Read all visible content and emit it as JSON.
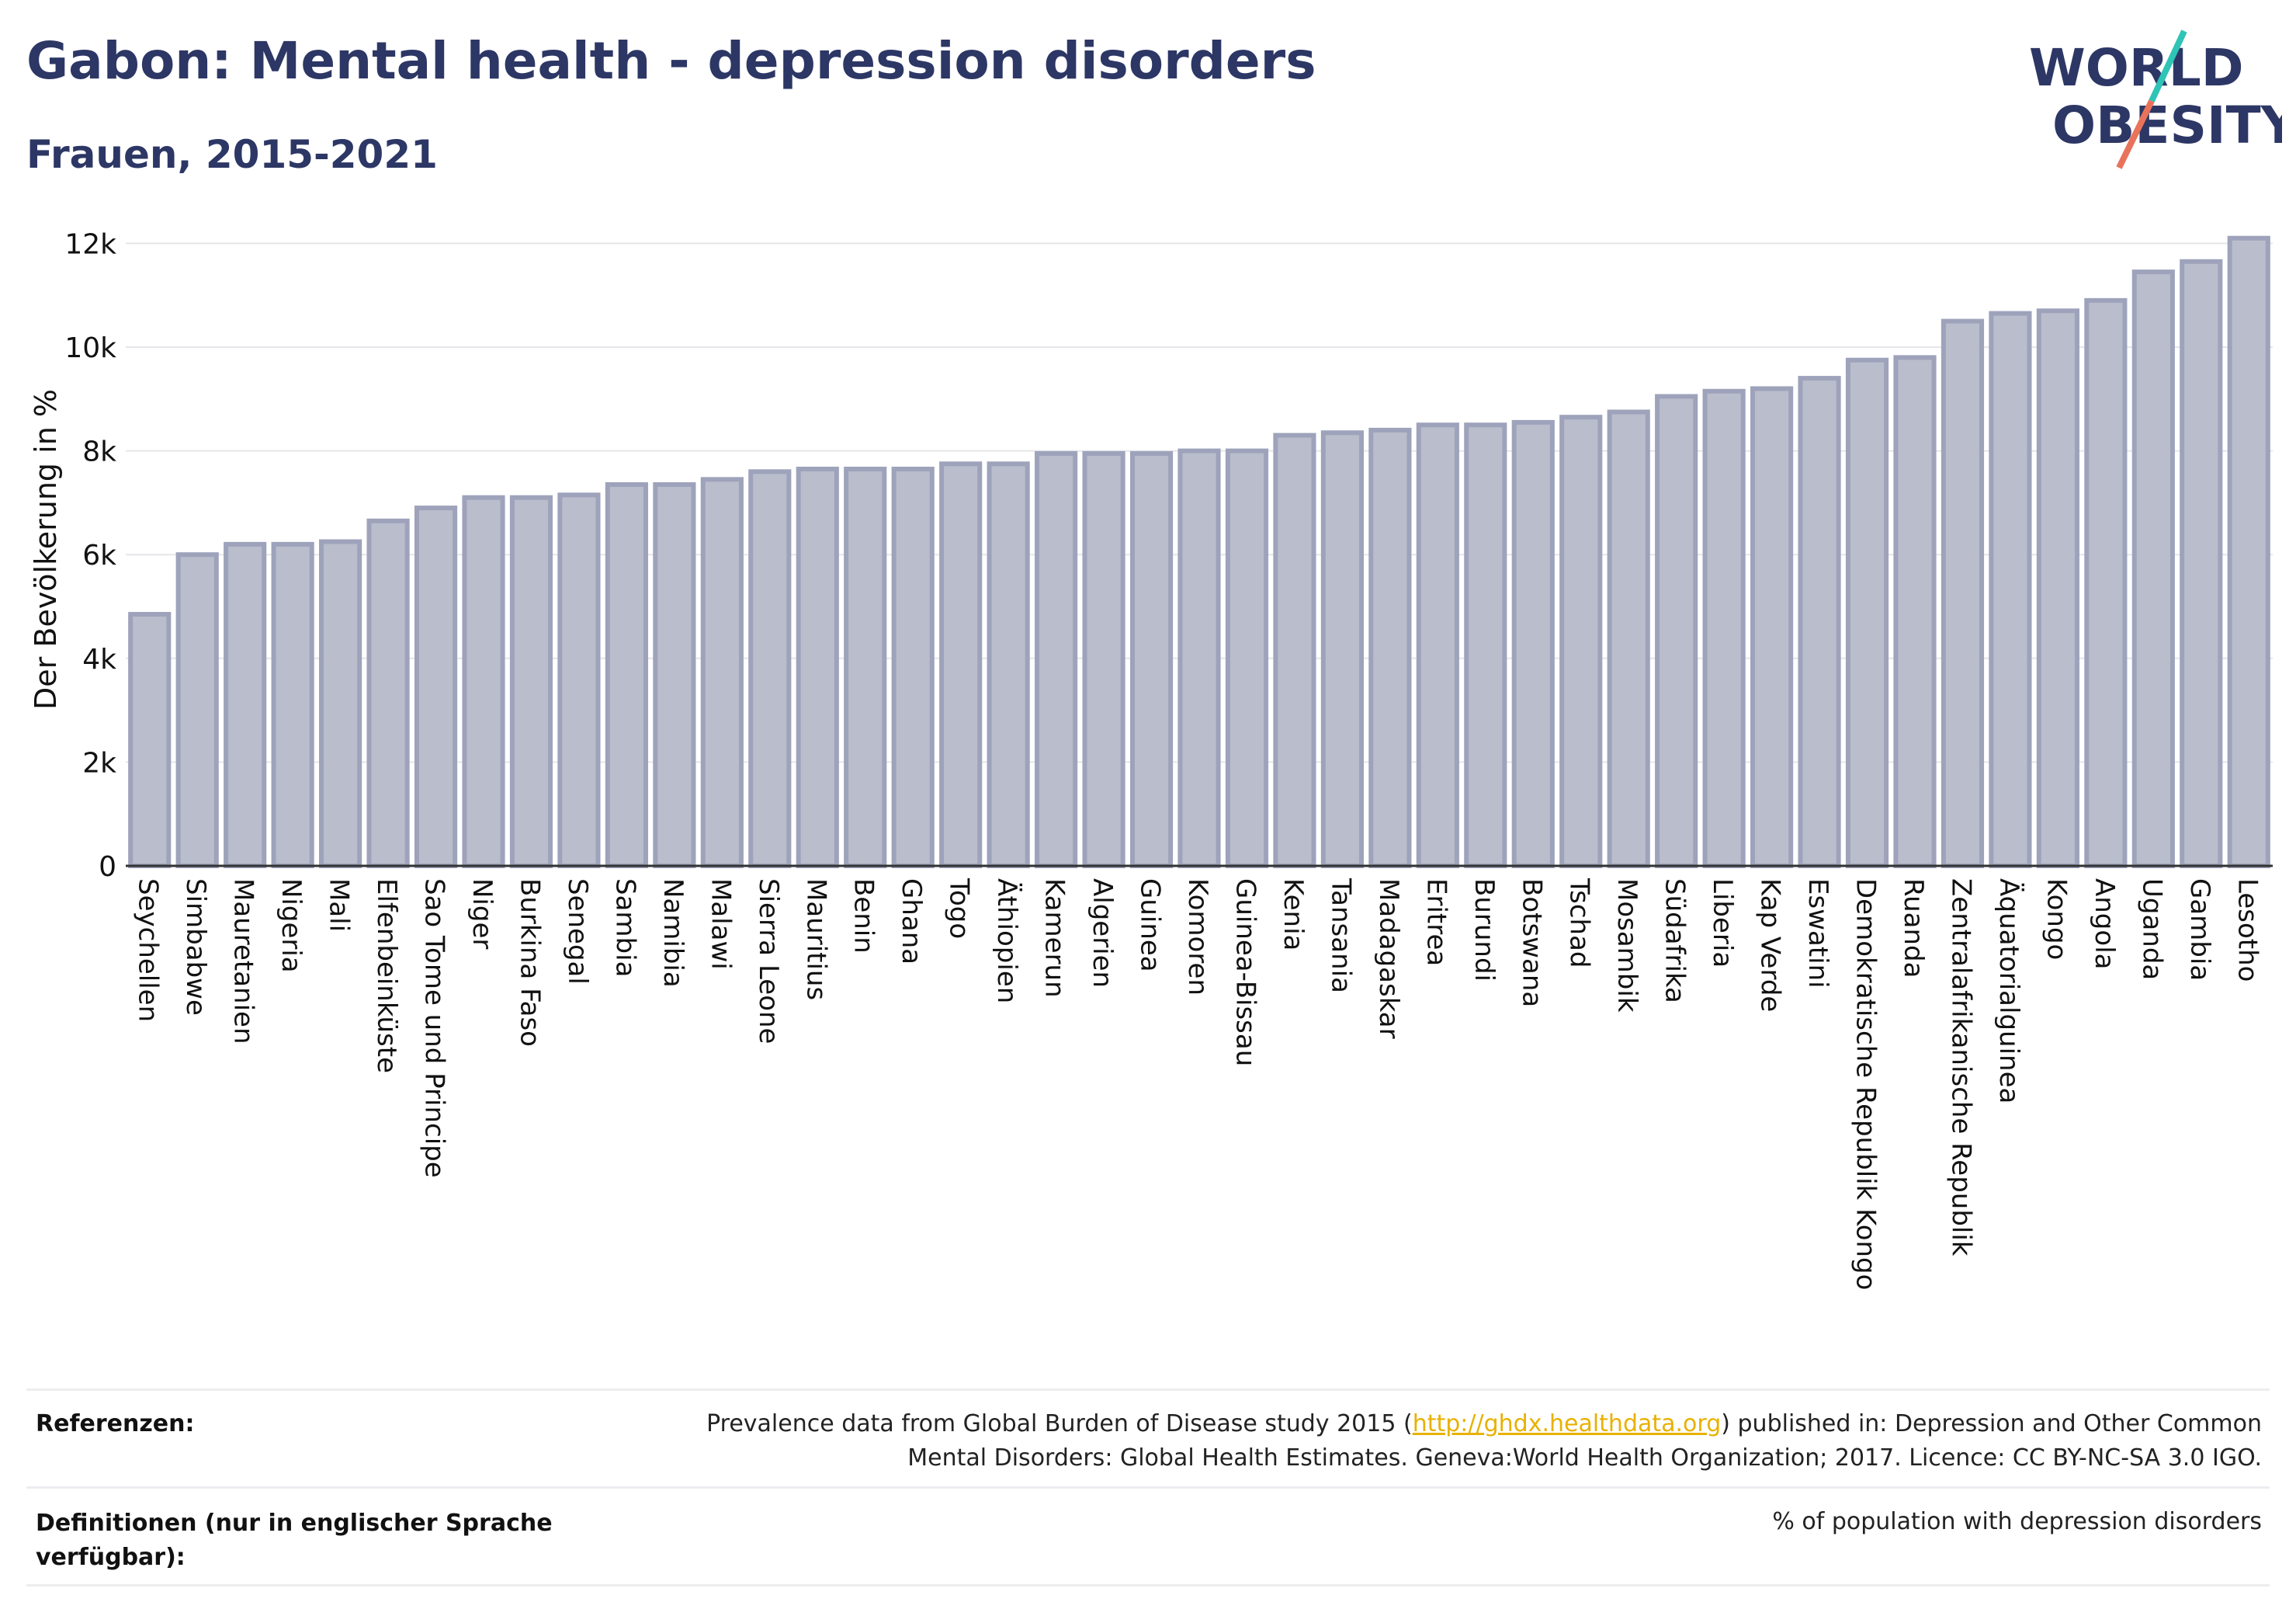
{
  "header": {
    "title": "Gabon: Mental health - depression disorders",
    "subtitle": "Frauen, 2015-2021"
  },
  "logo": {
    "line1": "WORLD",
    "line2": "OBESITY"
  },
  "colors": {
    "title": "#2d3765",
    "bar_fill": "#b9bdcc",
    "bar_stroke": "#9ea3bb",
    "grid": "#e6e6ea",
    "logo_teal": "#2ec4b6",
    "logo_coral": "#e8735a",
    "link": "#e8b100"
  },
  "chart_data": {
    "type": "bar",
    "ylabel": "Der Bevölkerung in %",
    "ylim": [
      0,
      12500
    ],
    "yticks": [
      0,
      2000,
      4000,
      6000,
      8000,
      10000,
      12000
    ],
    "ytick_labels": [
      "0",
      "2k",
      "4k",
      "6k",
      "8k",
      "10k",
      "12k"
    ],
    "grid": true,
    "categories": [
      "Seychellen",
      "Simbabwe",
      "Mauretanien",
      "Nigeria",
      "Mali",
      "Elfenbeinküste",
      "Sao Tome und Principe",
      "Niger",
      "Burkina Faso",
      "Senegal",
      "Sambia",
      "Namibia",
      "Malawi",
      "Sierra Leone",
      "Mauritius",
      "Benin",
      "Ghana",
      "Togo",
      "Äthiopien",
      "Kamerun",
      "Algerien",
      "Guinea",
      "Komoren",
      "Guinea-Bissau",
      "Kenia",
      "Tansania",
      "Madagaskar",
      "Eritrea",
      "Burundi",
      "Botswana",
      "Tschad",
      "Mosambik",
      "Südafrika",
      "Liberia",
      "Kap Verde",
      "Eswatini",
      "Demokratische Republik Kongo",
      "Ruanda",
      "Zentralafrikanische Republik",
      "Äquatorialguinea",
      "Kongo",
      "Angola",
      "Uganda",
      "Gambia",
      "Lesotho"
    ],
    "values": [
      4850,
      6000,
      6200,
      6200,
      6250,
      6650,
      6900,
      7100,
      7100,
      7150,
      7350,
      7350,
      7450,
      7600,
      7650,
      7650,
      7650,
      7750,
      7750,
      7950,
      7950,
      7950,
      8000,
      8000,
      8300,
      8350,
      8400,
      8500,
      8500,
      8550,
      8650,
      8750,
      9050,
      9150,
      9200,
      9400,
      9750,
      9800,
      10500,
      10650,
      10700,
      10900,
      11450,
      11650,
      12100
    ]
  },
  "footer": {
    "references_label": "Referenzen:",
    "references_line1_pre": "Prevalence data from Global Burden of Disease study 2015 (",
    "references_link": "http://ghdx.healthdata.org",
    "references_line1_post": ") published in: Depression and Other Common",
    "references_line2": "Mental Disorders: Global Health Estimates. Geneva:World Health Organization; 2017. Licence: CC BY-NC-SA 3.0 IGO.",
    "definitions_label_line1": "Definitionen (nur in englischer Sprache",
    "definitions_label_line2": "verfügbar):",
    "definitions_text": "% of population with depression disorders"
  }
}
